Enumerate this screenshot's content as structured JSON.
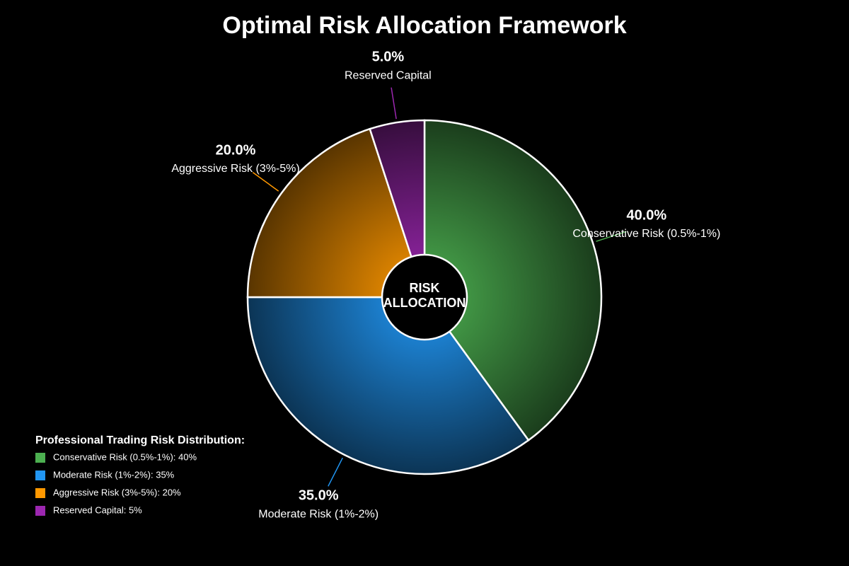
{
  "chart_data": {
    "type": "pie",
    "title": "Optimal Risk Allocation Framework",
    "categories": [
      "Conservative Risk (0.5%-1%)",
      "Moderate Risk (1%-2%)",
      "Aggressive Risk (3%-5%)",
      "Reserved Capital"
    ],
    "values": [
      40,
      35,
      20,
      5
    ],
    "value_labels": [
      "40.0%",
      "35.0%",
      "20.0%",
      "5.0%"
    ],
    "colors": [
      "#4caf50",
      "#2196f3",
      "#ff9800",
      "#9c27b0"
    ],
    "center_text": [
      "RISK",
      "ALLOCATION"
    ],
    "legend": {
      "title": "Professional Trading Risk Distribution:",
      "items": [
        "Conservative Risk (0.5%-1%): 40%",
        "Moderate Risk (1%-2%): 35%",
        "Aggressive Risk (3%-5%): 20%",
        "Reserved Capital: 5%"
      ]
    }
  }
}
